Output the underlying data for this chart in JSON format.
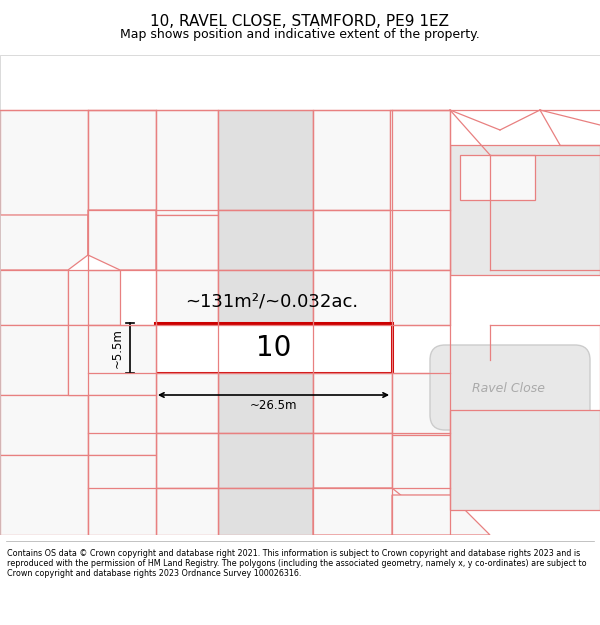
{
  "title": "10, RAVEL CLOSE, STAMFORD, PE9 1EZ",
  "subtitle": "Map shows position and indicative extent of the property.",
  "footer": "Contains OS data © Crown copyright and database right 2021. This information is subject to Crown copyright and database rights 2023 and is reproduced with the permission of HM Land Registry. The polygons (including the associated geometry, namely x, y co-ordinates) are subject to Crown copyright and database rights 2023 Ordnance Survey 100026316.",
  "bg_color": "#ffffff",
  "line_color": "#e88080",
  "highlight_color": "#cc0000",
  "area_text": "~131m²/~0.032ac.",
  "plot_number": "10",
  "width_label": "~26.5m",
  "height_label": "~5.5m",
  "road_label": "Ravel Close",
  "title_fontsize": 11,
  "subtitle_fontsize": 9,
  "footer_fontsize": 5.8
}
